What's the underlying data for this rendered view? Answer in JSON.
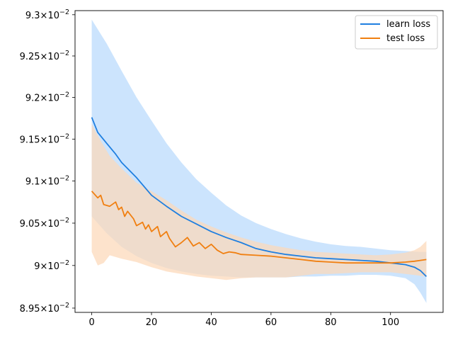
{
  "chart_data": {
    "type": "line",
    "title": "",
    "xlabel": "",
    "ylabel": "",
    "xlim": [
      -5.6,
      117.6
    ],
    "ylim": [
      0.08945,
      0.09305
    ],
    "yscale": "log",
    "grid": false,
    "legend_position": "top-right",
    "x_ticks": [
      {
        "value": 0,
        "label": "0"
      },
      {
        "value": 20,
        "label": "20"
      },
      {
        "value": 40,
        "label": "40"
      },
      {
        "value": 60,
        "label": "60"
      },
      {
        "value": 80,
        "label": "80"
      },
      {
        "value": 100,
        "label": "100"
      }
    ],
    "y_ticks": [
      {
        "value": 0.0895,
        "mantissa": "8.95",
        "exp": "−2"
      },
      {
        "value": 0.09,
        "mantissa": "9",
        "exp": "−2"
      },
      {
        "value": 0.0905,
        "mantissa": "9.05",
        "exp": "−2"
      },
      {
        "value": 0.091,
        "mantissa": "9.1",
        "exp": "−2"
      },
      {
        "value": 0.0915,
        "mantissa": "9.15",
        "exp": "−2"
      },
      {
        "value": 0.092,
        "mantissa": "9.2",
        "exp": "−2"
      },
      {
        "value": 0.0925,
        "mantissa": "9.25",
        "exp": "−2"
      },
      {
        "value": 0.093,
        "mantissa": "9.3",
        "exp": "−2"
      }
    ],
    "series": [
      {
        "name": "learn loss",
        "color": "#1f7fe0",
        "band_color": "#b9dafc",
        "mean": [
          [
            0,
            0.09176
          ],
          [
            2,
            0.09158
          ],
          [
            5,
            0.09145
          ],
          [
            8,
            0.09132
          ],
          [
            10,
            0.09122
          ],
          [
            15,
            0.09104
          ],
          [
            20,
            0.09083
          ],
          [
            25,
            0.0907
          ],
          [
            30,
            0.09058
          ],
          [
            35,
            0.09049
          ],
          [
            40,
            0.0904
          ],
          [
            45,
            0.09033
          ],
          [
            50,
            0.09027
          ],
          [
            55,
            0.0902
          ],
          [
            60,
            0.09016
          ],
          [
            65,
            0.09013
          ],
          [
            70,
            0.09011
          ],
          [
            75,
            0.09009
          ],
          [
            80,
            0.09008
          ],
          [
            85,
            0.09007
          ],
          [
            90,
            0.09006
          ],
          [
            95,
            0.09005
          ],
          [
            100,
            0.09003
          ],
          [
            105,
            0.09001
          ],
          [
            108,
            0.08998
          ],
          [
            110,
            0.08994
          ],
          [
            112,
            0.08987
          ]
        ],
        "upper": [
          [
            0,
            0.09294
          ],
          [
            5,
            0.09265
          ],
          [
            10,
            0.09232
          ],
          [
            15,
            0.092
          ],
          [
            20,
            0.09172
          ],
          [
            25,
            0.09145
          ],
          [
            30,
            0.09122
          ],
          [
            35,
            0.09102
          ],
          [
            40,
            0.09086
          ],
          [
            45,
            0.09071
          ],
          [
            50,
            0.09059
          ],
          [
            55,
            0.0905
          ],
          [
            60,
            0.09043
          ],
          [
            65,
            0.09037
          ],
          [
            70,
            0.09032
          ],
          [
            75,
            0.09028
          ],
          [
            80,
            0.09025
          ],
          [
            85,
            0.09023
          ],
          [
            90,
            0.09022
          ],
          [
            95,
            0.0902
          ],
          [
            100,
            0.09018
          ],
          [
            105,
            0.09017
          ],
          [
            110,
            0.09016
          ],
          [
            112,
            0.09016
          ]
        ],
        "lower": [
          [
            0,
            0.09058
          ],
          [
            5,
            0.09038
          ],
          [
            10,
            0.09022
          ],
          [
            15,
            0.09011
          ],
          [
            20,
            0.09003
          ],
          [
            25,
            0.08997
          ],
          [
            30,
            0.08993
          ],
          [
            35,
            0.0899
          ],
          [
            40,
            0.08988
          ],
          [
            45,
            0.08987
          ],
          [
            50,
            0.08986
          ],
          [
            55,
            0.08986
          ],
          [
            60,
            0.08986
          ],
          [
            65,
            0.08986
          ],
          [
            70,
            0.08987
          ],
          [
            75,
            0.08987
          ],
          [
            80,
            0.08988
          ],
          [
            85,
            0.08988
          ],
          [
            90,
            0.08989
          ],
          [
            95,
            0.08989
          ],
          [
            100,
            0.08988
          ],
          [
            105,
            0.08985
          ],
          [
            108,
            0.08978
          ],
          [
            110,
            0.08968
          ],
          [
            112,
            0.08956
          ]
        ]
      },
      {
        "name": "test loss",
        "color": "#f07f10",
        "band_color": "#fcd8b8",
        "mean": [
          [
            0,
            0.09088
          ],
          [
            2,
            0.0908
          ],
          [
            3,
            0.09083
          ],
          [
            4,
            0.09072
          ],
          [
            6,
            0.0907
          ],
          [
            8,
            0.09075
          ],
          [
            9,
            0.09066
          ],
          [
            10,
            0.09069
          ],
          [
            11,
            0.09058
          ],
          [
            12,
            0.09064
          ],
          [
            14,
            0.09055
          ],
          [
            15,
            0.09047
          ],
          [
            17,
            0.09051
          ],
          [
            18,
            0.09043
          ],
          [
            19,
            0.09048
          ],
          [
            20,
            0.0904
          ],
          [
            22,
            0.09046
          ],
          [
            23,
            0.09034
          ],
          [
            25,
            0.0904
          ],
          [
            26,
            0.09032
          ],
          [
            28,
            0.09022
          ],
          [
            30,
            0.09027
          ],
          [
            32,
            0.09033
          ],
          [
            34,
            0.09023
          ],
          [
            36,
            0.09027
          ],
          [
            38,
            0.0902
          ],
          [
            40,
            0.09025
          ],
          [
            42,
            0.09018
          ],
          [
            44,
            0.09014
          ],
          [
            46,
            0.09016
          ],
          [
            48,
            0.09015
          ],
          [
            50,
            0.09013
          ],
          [
            55,
            0.09012
          ],
          [
            60,
            0.09011
          ],
          [
            65,
            0.09009
          ],
          [
            70,
            0.09007
          ],
          [
            75,
            0.09005
          ],
          [
            80,
            0.09004
          ],
          [
            85,
            0.09003
          ],
          [
            90,
            0.09003
          ],
          [
            95,
            0.09003
          ],
          [
            100,
            0.09003
          ],
          [
            105,
            0.09004
          ],
          [
            108,
            0.09005
          ],
          [
            110,
            0.09006
          ],
          [
            112,
            0.09007
          ]
        ],
        "upper": [
          [
            0,
            0.09168
          ],
          [
            3,
            0.09148
          ],
          [
            6,
            0.0913
          ],
          [
            10,
            0.09115
          ],
          [
            15,
            0.09098
          ],
          [
            20,
            0.09088
          ],
          [
            25,
            0.09077
          ],
          [
            30,
            0.09065
          ],
          [
            35,
            0.09054
          ],
          [
            40,
            0.09046
          ],
          [
            45,
            0.09039
          ],
          [
            50,
            0.09033
          ],
          [
            55,
            0.09028
          ],
          [
            60,
            0.09024
          ],
          [
            65,
            0.09021
          ],
          [
            70,
            0.09018
          ],
          [
            75,
            0.09016
          ],
          [
            80,
            0.09015
          ],
          [
            85,
            0.09014
          ],
          [
            90,
            0.09013
          ],
          [
            95,
            0.09012
          ],
          [
            100,
            0.09013
          ],
          [
            105,
            0.09015
          ],
          [
            108,
            0.09018
          ],
          [
            110,
            0.09022
          ],
          [
            112,
            0.09029
          ]
        ],
        "lower": [
          [
            0,
            0.09016
          ],
          [
            2,
            0.09
          ],
          [
            4,
            0.09003
          ],
          [
            6,
            0.09012
          ],
          [
            10,
            0.09008
          ],
          [
            15,
            0.09004
          ],
          [
            20,
            0.08998
          ],
          [
            25,
            0.08993
          ],
          [
            30,
            0.0899
          ],
          [
            35,
            0.08987
          ],
          [
            40,
            0.08985
          ],
          [
            45,
            0.08983
          ],
          [
            50,
            0.08985
          ],
          [
            55,
            0.08986
          ],
          [
            60,
            0.08986
          ],
          [
            65,
            0.08986
          ],
          [
            70,
            0.08988
          ],
          [
            75,
            0.0899
          ],
          [
            80,
            0.0899
          ],
          [
            85,
            0.08991
          ],
          [
            90,
            0.08992
          ],
          [
            95,
            0.08992
          ],
          [
            100,
            0.08992
          ],
          [
            105,
            0.0899
          ],
          [
            110,
            0.08988
          ],
          [
            112,
            0.08987
          ]
        ]
      }
    ]
  }
}
